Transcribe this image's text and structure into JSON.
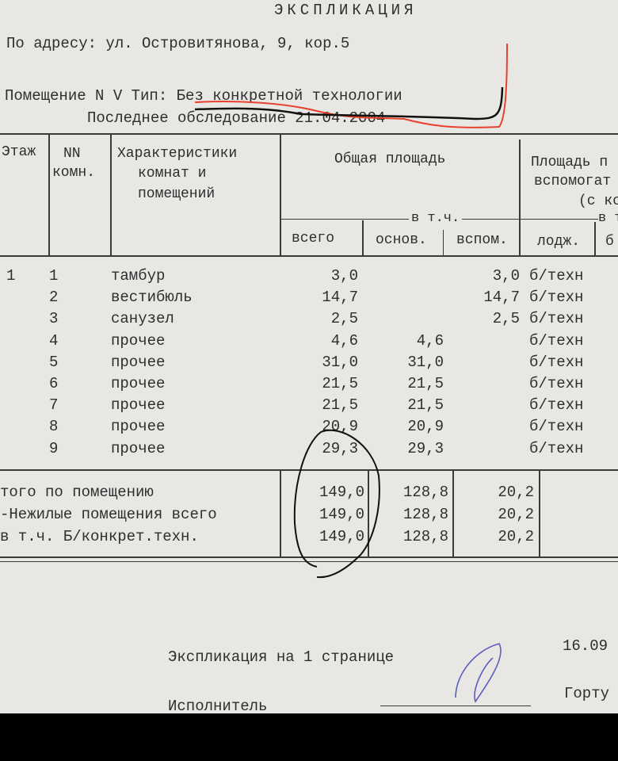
{
  "title": "ЭКСПЛИКАЦИЯ",
  "address": "По адресу: ул. Островитянова, 9, кор.5",
  "premise": "Помещение N V Тип: Без конкретной технологии",
  "last_survey": "Последнее обследование 21.04.2004",
  "headers": {
    "floor": "Этаж",
    "room_no": [
      "NN",
      "комн."
    ],
    "characteristics": [
      "Характеристики",
      "комнат и",
      "помещений"
    ],
    "total_area": "Общая площадь",
    "incl": "в т.ч.",
    "total": "всего",
    "main": "основ.",
    "aux": "вспом.",
    "aux_area": [
      "Площадь п",
      "вспомогат",
      "(с ко"
    ],
    "incl2": "в т",
    "loggia": "лодж.",
    "b": "б"
  },
  "floor_value": "1",
  "rows": [
    {
      "no": "1",
      "name": "тамбур",
      "total": "3,0",
      "main": "",
      "aux": "3,0",
      "type": "б/техн"
    },
    {
      "no": "2",
      "name": "вестибюль",
      "total": "14,7",
      "main": "",
      "aux": "14,7",
      "type": "б/техн"
    },
    {
      "no": "3",
      "name": "санузел",
      "total": "2,5",
      "main": "",
      "aux": "2,5",
      "type": "б/техн"
    },
    {
      "no": "4",
      "name": "прочее",
      "total": "4,6",
      "main": "4,6",
      "aux": "",
      "type": "б/техн"
    },
    {
      "no": "5",
      "name": "прочее",
      "total": "31,0",
      "main": "31,0",
      "aux": "",
      "type": "б/техн"
    },
    {
      "no": "6",
      "name": "прочее",
      "total": "21,5",
      "main": "21,5",
      "aux": "",
      "type": "б/техн"
    },
    {
      "no": "7",
      "name": "прочее",
      "total": "21,5",
      "main": "21,5",
      "aux": "",
      "type": "б/техн"
    },
    {
      "no": "8",
      "name": "прочее",
      "total": "20,9",
      "main": "20,9",
      "aux": "",
      "type": "б/техн"
    },
    {
      "no": "9",
      "name": "прочее",
      "total": "29,3",
      "main": "29,3",
      "aux": "",
      "type": "б/техн"
    }
  ],
  "totals": [
    {
      "label": "того      по помещению",
      "total": "149,0",
      "main": "128,8",
      "aux": "20,2"
    },
    {
      "label": "-Нежилые помещения всего",
      "total": "149,0",
      "main": "128,8",
      "aux": "20,2"
    },
    {
      "label": " в т.ч. Б/конкрет.техн.",
      "total": "149,0",
      "main": "128,8",
      "aux": "20,2"
    }
  ],
  "footer": {
    "pages": "Экспликация на 1 странице",
    "date": "16.09",
    "executor": "Исполнитель",
    "name_partial": "Горту"
  },
  "colors": {
    "paper": "#e9e7e4",
    "ink": "#2e2e2e",
    "red_mark": "#e8412e",
    "black_mark": "#111111",
    "signature": "#5a5fc0"
  }
}
